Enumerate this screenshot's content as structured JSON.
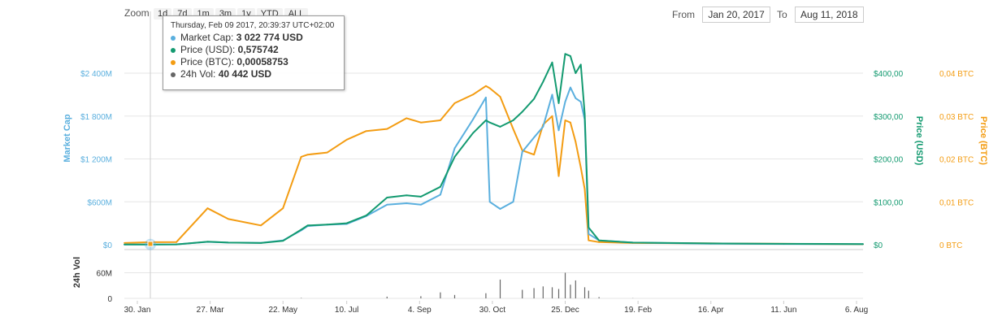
{
  "zoom": {
    "label": "Zoom",
    "options": [
      "1d",
      "7d",
      "1m",
      "3m",
      "1y",
      "YTD",
      "ALL"
    ]
  },
  "range": {
    "from_label": "From",
    "from_value": "Jan 20, 2017",
    "to_label": "To",
    "to_value": "Aug 11, 2018"
  },
  "tooltip": {
    "header": "Thursday, Feb 09 2017, 20:39:37 UTC+02:00",
    "rows": [
      {
        "label": "Market Cap:",
        "value": "3 022 774 USD",
        "color": "#5aafde"
      },
      {
        "label": "Price (USD):",
        "value": "0,575742",
        "color": "#139a70"
      },
      {
        "label": "Price (BTC):",
        "value": "0,00058753",
        "color": "#f39c12"
      },
      {
        "label": "24h Vol:",
        "value": "40 442 USD",
        "color": "#666666"
      }
    ]
  },
  "colors": {
    "market_cap": "#5aafde",
    "price_usd": "#139a70",
    "price_btc": "#f39c12",
    "volume": "#666666",
    "grid": "#e6e6e6"
  },
  "chart_data": {
    "type": "line",
    "x_tick_labels": [
      "30. Jan",
      "27. Mar",
      "22. May",
      "10. Jul",
      "4. Sep",
      "30. Oct",
      "25. Dec",
      "19. Feb",
      "16. Apr",
      "11. Jun",
      "6. Aug"
    ],
    "x": [
      "2017-01-20",
      "2017-02-09",
      "2017-03-01",
      "2017-03-25",
      "2017-04-10",
      "2017-05-05",
      "2017-05-22",
      "2017-06-05",
      "2017-06-10",
      "2017-06-25",
      "2017-07-10",
      "2017-07-25",
      "2017-08-10",
      "2017-08-25",
      "2017-09-05",
      "2017-09-20",
      "2017-10-01",
      "2017-10-15",
      "2017-10-25",
      "2017-10-28",
      "2017-11-05",
      "2017-11-15",
      "2017-11-22",
      "2017-12-01",
      "2017-12-08",
      "2017-12-15",
      "2017-12-20",
      "2017-12-25",
      "2017-12-29",
      "2018-01-02",
      "2018-01-06",
      "2018-01-09",
      "2018-01-12",
      "2018-01-20",
      "2018-02-15",
      "2018-04-16",
      "2018-06-11",
      "2018-08-11"
    ],
    "series": [
      {
        "name": "Market Cap",
        "axis": "Market Cap",
        "values": [
          2000000,
          3022774,
          5000000,
          40000000,
          30000000,
          25000000,
          60000000,
          200000000,
          260000000,
          280000000,
          290000000,
          400000000,
          560000000,
          580000000,
          560000000,
          700000000,
          1350000000,
          1750000000,
          2060000000,
          600000000,
          500000000,
          600000000,
          1300000000,
          1500000000,
          1650000000,
          2100000000,
          1600000000,
          2000000000,
          2200000000,
          2050000000,
          2000000000,
          1750000000,
          150000000,
          60000000,
          30000000,
          15000000,
          10000000,
          8000000
        ]
      },
      {
        "name": "Price (USD)",
        "axis": "Price (USD)",
        "values": [
          0.4,
          0.575742,
          0.8,
          7,
          5,
          4,
          9,
          35,
          45,
          47,
          50,
          68,
          110,
          115,
          112,
          135,
          205,
          260,
          290,
          285,
          275,
          290,
          310,
          340,
          380,
          425,
          330,
          445,
          440,
          400,
          420,
          305,
          40,
          10,
          5,
          3,
          2,
          1.5
        ]
      },
      {
        "name": "Price (BTC)",
        "axis": "Price (BTC)",
        "values": [
          0.0004,
          0.00058753,
          0.0006,
          0.0085,
          0.006,
          0.0045,
          0.0085,
          0.0205,
          0.021,
          0.0215,
          0.0245,
          0.0265,
          0.027,
          0.0295,
          0.0285,
          0.029,
          0.033,
          0.035,
          0.037,
          0.0365,
          0.0345,
          0.027,
          0.022,
          0.021,
          0.028,
          0.03,
          0.016,
          0.029,
          0.0285,
          0.024,
          0.018,
          0.013,
          0.001,
          0.0006,
          0.0004,
          0.0003,
          0.0002,
          0.0001
        ]
      }
    ],
    "volume": {
      "name": "24h Vol",
      "x": [
        "2017-02-09",
        "2017-06-05",
        "2017-08-10",
        "2017-09-05",
        "2017-09-20",
        "2017-10-01",
        "2017-10-25",
        "2017-11-05",
        "2017-11-22",
        "2017-12-01",
        "2017-12-08",
        "2017-12-15",
        "2017-12-20",
        "2017-12-25",
        "2017-12-29",
        "2018-01-02",
        "2018-01-09",
        "2018-01-12",
        "2018-01-20",
        "2018-02-15"
      ],
      "values": [
        40442,
        1000000,
        4000000,
        5000000,
        14000000,
        8000000,
        12000000,
        44000000,
        20000000,
        24000000,
        28000000,
        26000000,
        22000000,
        60000000,
        32000000,
        42000000,
        26000000,
        18000000,
        3000000,
        500000
      ]
    },
    "axes": {
      "market_cap": {
        "title": "Market Cap",
        "ticks": [
          "$0",
          "$600M",
          "$1 200M",
          "$1 800M",
          "$2 400M"
        ],
        "ylim": [
          0,
          2400000000
        ]
      },
      "price_usd": {
        "title": "Price (USD)",
        "ticks": [
          "$0",
          "$100,00",
          "$200,00",
          "$300,00",
          "$400,00"
        ],
        "ylim": [
          0,
          400
        ]
      },
      "price_btc": {
        "title": "Price (BTC)",
        "ticks": [
          "0 BTC",
          "0,01 BTC",
          "0,02 BTC",
          "0,03 BTC",
          "0,04 BTC"
        ],
        "ylim": [
          0,
          0.04
        ]
      },
      "volume": {
        "title": "24h Vol",
        "ticks": [
          "0",
          "60M"
        ],
        "ylim": [
          0,
          120000000
        ]
      }
    },
    "grid": true,
    "legend": "tooltip"
  }
}
